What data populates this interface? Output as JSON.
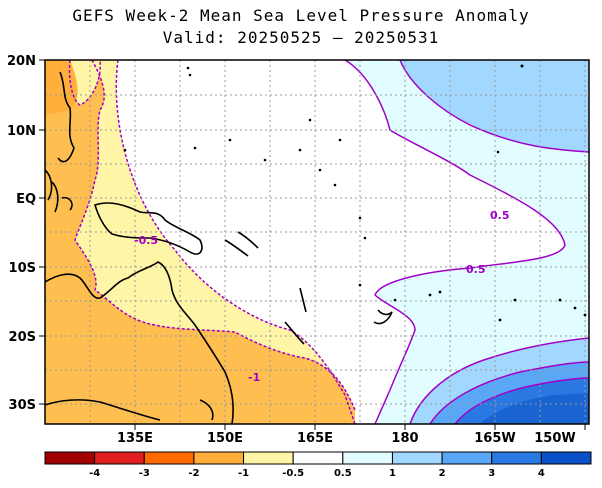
{
  "title_line1": "GEFS Week-2 Mean Sea Level Pressure Anomaly",
  "title_line2": "Valid: 20250525 – 20250531",
  "map": {
    "lon_labels": [
      "135E",
      "150E",
      "165E",
      "180",
      "165W",
      "150W"
    ],
    "lat_labels": [
      "20N",
      "10N",
      "EQ",
      "10S",
      "20S",
      "30S"
    ],
    "contour_labels": [
      "0.5",
      "0.5",
      "-0.5",
      "-1"
    ]
  },
  "colorbar": {
    "labels": [
      "-4",
      "-3",
      "-2",
      "-1",
      "-0.5",
      "0.5",
      "1",
      "2",
      "3",
      "4"
    ],
    "colors": [
      "#a00000",
      "#e01e1e",
      "#ff6a00",
      "#ffae3c",
      "#fff5a6",
      "#ffffff",
      "#e1fdff",
      "#a2d8ff",
      "#5aa8f5",
      "#2a78e1",
      "#0a50c8"
    ]
  }
}
